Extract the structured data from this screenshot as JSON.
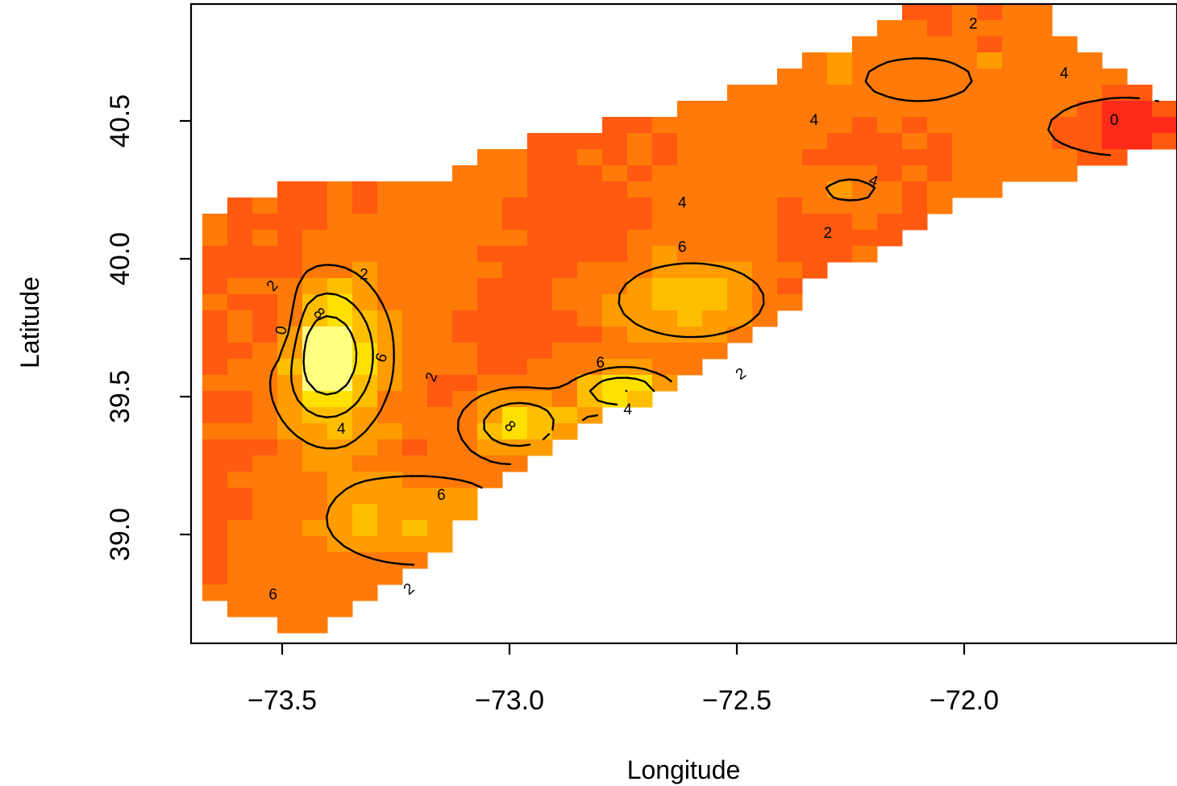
{
  "chart_data": {
    "type": "heatmap",
    "title": "",
    "xlabel": "Longitude",
    "ylabel": "Latitude",
    "xlim": [
      -73.7,
      -71.55
    ],
    "ylim": [
      38.65,
      40.95
    ],
    "x_ticks": [
      -73.5,
      -73.0,
      -72.5,
      -72.0
    ],
    "x_tick_labels": [
      "−73.5",
      "−73.0",
      "−72.5",
      "−72.0"
    ],
    "y_ticks": [
      39.0,
      39.5,
      40.0,
      40.5
    ],
    "y_tick_labels": [
      "39.0",
      "39.5",
      "40.0",
      "40.5"
    ],
    "grid": false,
    "legend": "none",
    "colormap": "heat (red → orange → yellow → white)",
    "color_scale": [
      "#ff2a1a",
      "#ff5a10",
      "#ff7a08",
      "#ff9c00",
      "#ffbf00",
      "#ffe000",
      "#ffff80"
    ],
    "region": {
      "description_points_lon_lat": [
        [
          -73.68,
          40.17
        ],
        [
          -73.55,
          40.25
        ],
        [
          -73.2,
          40.28
        ],
        [
          -72.9,
          40.45
        ],
        [
          -72.55,
          40.58
        ],
        [
          -72.3,
          40.75
        ],
        [
          -72.1,
          40.92
        ],
        [
          -71.85,
          40.92
        ],
        [
          -71.55,
          40.55
        ],
        [
          -71.55,
          40.42
        ],
        [
          -72.0,
          40.2
        ],
        [
          -72.3,
          39.95
        ],
        [
          -72.55,
          39.62
        ],
        [
          -72.95,
          39.3
        ],
        [
          -73.25,
          38.8
        ],
        [
          -73.45,
          38.65
        ],
        [
          -73.68,
          38.75
        ]
      ]
    },
    "field_centers": [
      {
        "lon": -73.4,
        "lat": 39.65,
        "value": 10,
        "sx": 0.08,
        "sy": 0.18
      },
      {
        "lon": -72.98,
        "lat": 39.4,
        "value": 8,
        "sx": 0.08,
        "sy": 0.08
      },
      {
        "lon": -72.75,
        "lat": 39.52,
        "value": 8,
        "sx": 0.07,
        "sy": 0.05
      },
      {
        "lon": -72.6,
        "lat": 39.85,
        "value": 6,
        "sx": 0.12,
        "sy": 0.1
      },
      {
        "lon": -73.2,
        "lat": 39.05,
        "value": 6,
        "sx": 0.15,
        "sy": 0.12
      },
      {
        "lon": -72.25,
        "lat": 40.25,
        "value": 4.5,
        "sx": 0.07,
        "sy": 0.05
      },
      {
        "lon": -72.1,
        "lat": 40.65,
        "value": 4.5,
        "sx": 0.15,
        "sy": 0.1
      },
      {
        "lon": -73.5,
        "lat": 39.75,
        "value": 0,
        "sx": 0.03,
        "sy": 0.12
      },
      {
        "lon": -71.65,
        "lat": 40.48,
        "value": 0,
        "sx": 0.1,
        "sy": 0.06
      }
    ],
    "contour_levels": [
      0,
      2,
      4,
      6,
      8
    ],
    "contour_labels": [
      {
        "text": "2",
        "lon": -71.98,
        "lat": 40.85,
        "rotate": 0
      },
      {
        "text": "4",
        "lon": -71.78,
        "lat": 40.67,
        "rotate": 0
      },
      {
        "text": "4",
        "lon": -72.33,
        "lat": 40.5,
        "rotate": 0
      },
      {
        "text": "0",
        "lon": -71.67,
        "lat": 40.5,
        "rotate": 0
      },
      {
        "text": "4",
        "lon": -72.2,
        "lat": 40.28,
        "rotate": 20
      },
      {
        "text": "4",
        "lon": -72.62,
        "lat": 40.2,
        "rotate": 0
      },
      {
        "text": "2",
        "lon": -72.3,
        "lat": 40.09,
        "rotate": 0
      },
      {
        "text": "6",
        "lon": -72.62,
        "lat": 40.04,
        "rotate": 0
      },
      {
        "text": "2",
        "lon": -73.52,
        "lat": 39.9,
        "rotate": -50
      },
      {
        "text": "2",
        "lon": -73.32,
        "lat": 39.94,
        "rotate": 0
      },
      {
        "text": "8",
        "lon": -73.42,
        "lat": 39.8,
        "rotate": 45
      },
      {
        "text": "0",
        "lon": -73.5,
        "lat": 39.74,
        "rotate": -80
      },
      {
        "text": "6",
        "lon": -73.28,
        "lat": 39.64,
        "rotate": -70
      },
      {
        "text": "2",
        "lon": -73.17,
        "lat": 39.57,
        "rotate": -70
      },
      {
        "text": "6",
        "lon": -72.8,
        "lat": 39.62,
        "rotate": 0
      },
      {
        "text": "2",
        "lon": -72.49,
        "lat": 39.58,
        "rotate": -35
      },
      {
        "text": "4",
        "lon": -72.74,
        "lat": 39.45,
        "rotate": 0
      },
      {
        "text": "8",
        "lon": -73.0,
        "lat": 39.39,
        "rotate": 45
      },
      {
        "text": "4",
        "lon": -73.37,
        "lat": 39.38,
        "rotate": 0
      },
      {
        "text": "6",
        "lon": -73.15,
        "lat": 39.14,
        "rotate": 0
      },
      {
        "text": "6",
        "lon": -73.52,
        "lat": 38.78,
        "rotate": 0
      },
      {
        "text": "2",
        "lon": -73.22,
        "lat": 38.8,
        "rotate": -40
      }
    ]
  }
}
